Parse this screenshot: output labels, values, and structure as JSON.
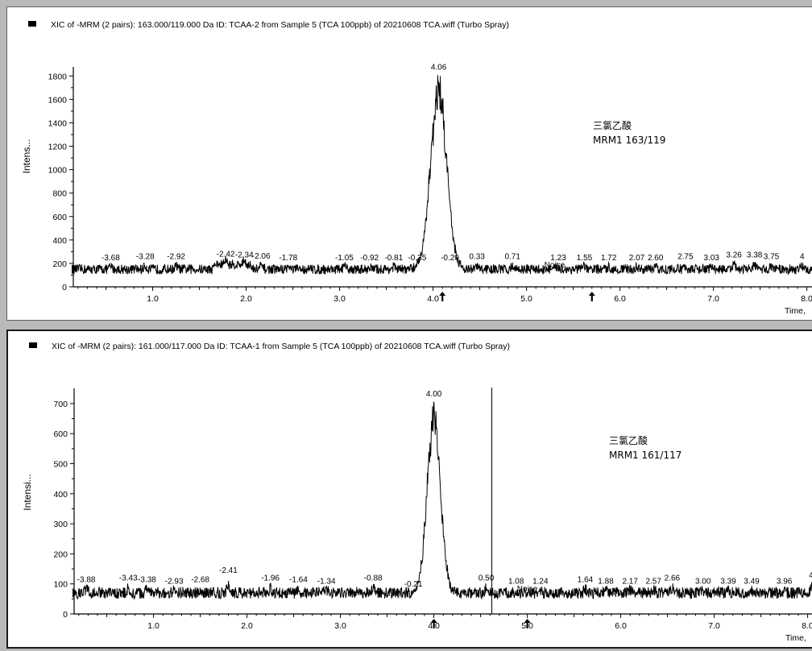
{
  "chart_data": [
    {
      "type": "line",
      "title": "XIC of -MRM (2 pairs): 163.000/119.000 Da ID: TCAA-2 from Sample 5 (TCA 100ppb) of 20210608 TCA.wiff (Turbo Spray)",
      "ylabel": "Intens...",
      "xlabel": "Time, ",
      "xlim": [
        0.15,
        8.15
      ],
      "ylim": [
        0,
        1850
      ],
      "xticks": [
        "1.0",
        "2.0",
        "3.0",
        "4.0",
        "5.0",
        "6.0",
        "7.0",
        "8.0"
      ],
      "yticks": [
        "0",
        "200",
        "400",
        "600",
        "800",
        "1000",
        "1200",
        "1400",
        "1600",
        "1800"
      ],
      "baseline": 150,
      "peak": {
        "time": 4.06,
        "height": 1820,
        "width": 0.12,
        "label": "4.06"
      },
      "noise_marker": {
        "label": "Noise",
        "time": 5.3
      },
      "markers": [
        4.1,
        5.7
      ],
      "annotation": {
        "line1": "三氯乙酸",
        "line2": "MRM1 163/119"
      },
      "peak_labels": [
        {
          "label": "-3.68",
          "x": 0.55,
          "y": 185
        },
        {
          "label": "-3.28",
          "x": 0.92,
          "y": 195
        },
        {
          "label": "-2.92",
          "x": 1.25,
          "y": 195
        },
        {
          "label": "-2.42",
          "x": 1.78,
          "y": 215
        },
        {
          "label": "-2.34",
          "x": 1.98,
          "y": 210
        },
        {
          "label": "-2.06",
          "x": 2.16,
          "y": 200
        },
        {
          "label": "-1.78",
          "x": 2.45,
          "y": 185
        },
        {
          "label": "-1.05",
          "x": 3.05,
          "y": 185
        },
        {
          "label": "-0.92",
          "x": 3.32,
          "y": 185
        },
        {
          "label": "-0.81",
          "x": 3.58,
          "y": 185
        },
        {
          "label": "-0.35",
          "x": 3.83,
          "y": 185
        },
        {
          "label": "-0.20",
          "x": 4.18,
          "y": 185
        },
        {
          "label": "0.33",
          "x": 4.47,
          "y": 195
        },
        {
          "label": "0.71",
          "x": 4.85,
          "y": 195
        },
        {
          "label": "1.23",
          "x": 5.34,
          "y": 185
        },
        {
          "label": "1.55",
          "x": 5.62,
          "y": 185
        },
        {
          "label": "1.72",
          "x": 5.88,
          "y": 185
        },
        {
          "label": "2.07",
          "x": 6.18,
          "y": 185
        },
        {
          "label": "2.60",
          "x": 6.38,
          "y": 185
        },
        {
          "label": "2.75",
          "x": 6.7,
          "y": 195
        },
        {
          "label": "3.03",
          "x": 6.98,
          "y": 185
        },
        {
          "label": "3.26",
          "x": 7.22,
          "y": 210
        },
        {
          "label": "3.38",
          "x": 7.44,
          "y": 210
        },
        {
          "label": "3.75",
          "x": 7.62,
          "y": 195
        },
        {
          "label": "4",
          "x": 7.95,
          "y": 195
        }
      ]
    },
    {
      "type": "line",
      "title": "XIC of -MRM (2 pairs): 161.000/117.000 Da ID: TCAA-1 from Sample 5 (TCA 100ppb) of 20210608 TCA.wiff (Turbo Spray)",
      "ylabel": "Intensi...",
      "xlabel": "Time, ",
      "xlim": [
        0.15,
        8.15
      ],
      "ylim": [
        0,
        740
      ],
      "xticks": [
        "1.0",
        "2.0",
        "3.0",
        "4.0",
        "5.0",
        "6.0",
        "7.0",
        "8.0"
      ],
      "yticks": [
        "0",
        "100",
        "200",
        "300",
        "400",
        "500",
        "600",
        "700"
      ],
      "baseline": 70,
      "peak": {
        "time": 4.0,
        "height": 710,
        "width": 0.1,
        "label": "4.00"
      },
      "noise_marker": {
        "label": "Noise",
        "time": 5.0
      },
      "markers": [
        4.0,
        5.0
      ],
      "vertical_line_time": 4.62,
      "annotation": {
        "line1": "三氯乙酸",
        "line2": "MRM1 161/117"
      },
      "peak_labels": [
        {
          "label": "-3.88",
          "x": 0.28,
          "y": 90
        },
        {
          "label": "-3.43",
          "x": 0.73,
          "y": 95
        },
        {
          "label": "-3.38",
          "x": 0.93,
          "y": 90
        },
        {
          "label": "-2.93",
          "x": 1.22,
          "y": 85
        },
        {
          "label": "-2.68",
          "x": 1.5,
          "y": 90
        },
        {
          "label": "-2.41",
          "x": 1.8,
          "y": 120
        },
        {
          "label": "-1.96",
          "x": 2.25,
          "y": 95
        },
        {
          "label": "-1.64",
          "x": 2.55,
          "y": 90
        },
        {
          "label": "-1.34",
          "x": 2.85,
          "y": 85
        },
        {
          "label": "-0.88",
          "x": 3.35,
          "y": 95
        },
        {
          "label": "-0.21",
          "x": 3.78,
          "y": 75
        },
        {
          "label": "0.50",
          "x": 4.56,
          "y": 95
        },
        {
          "label": "1.08",
          "x": 4.88,
          "y": 85
        },
        {
          "label": "1.24",
          "x": 5.14,
          "y": 85
        },
        {
          "label": "1.64",
          "x": 5.62,
          "y": 90
        },
        {
          "label": "1.88",
          "x": 5.84,
          "y": 85
        },
        {
          "label": "2.17",
          "x": 6.1,
          "y": 85
        },
        {
          "label": "2.57",
          "x": 6.35,
          "y": 85
        },
        {
          "label": "2.66",
          "x": 6.55,
          "y": 95
        },
        {
          "label": "3.00",
          "x": 6.88,
          "y": 85
        },
        {
          "label": "3.39",
          "x": 7.15,
          "y": 85
        },
        {
          "label": "3.49",
          "x": 7.4,
          "y": 85
        },
        {
          "label": "3.96",
          "x": 7.75,
          "y": 85
        },
        {
          "label": "4.",
          "x": 8.05,
          "y": 105
        }
      ]
    }
  ]
}
